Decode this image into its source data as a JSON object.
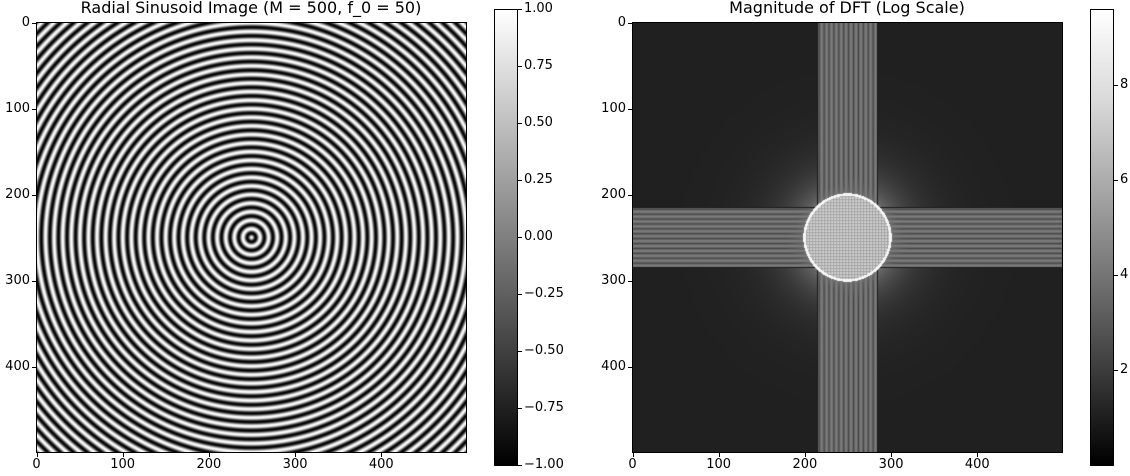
{
  "chart_data": [
    {
      "type": "heatmap",
      "title": "Radial Sinusoid Image (M = 500, f_0 = 50)",
      "image": {
        "size": 500,
        "frequency": 50,
        "pattern": "radial sinusoid (concentric rings centered at 250, 250)",
        "colormap": "gray"
      },
      "x_ticks": [
        "0",
        "100",
        "200",
        "300",
        "400"
      ],
      "x_tick_values": [
        0,
        100,
        200,
        300,
        400
      ],
      "y_ticks": [
        "0",
        "100",
        "200",
        "300",
        "400"
      ],
      "y_tick_values": [
        0,
        100,
        200,
        300,
        400
      ],
      "xlim": [
        0,
        500
      ],
      "ylim": [
        500,
        0
      ],
      "colorbar": {
        "range": [
          -1.0,
          1.0
        ],
        "ticks": [
          "1.00",
          "0.75",
          "0.50",
          "0.25",
          "0.00",
          "−0.25",
          "−0.50",
          "−0.75",
          "−1.00"
        ],
        "tick_values": [
          1.0,
          0.75,
          0.5,
          0.25,
          0.0,
          -0.25,
          -0.5,
          -0.75,
          -1.0
        ]
      }
    },
    {
      "type": "heatmap",
      "title": "Magnitude of DFT (Log Scale)",
      "image": {
        "size": 500,
        "pattern": "bright disc of radius ~50 at center with horizontal and vertical cross bands between 215 and 285",
        "colormap": "gray"
      },
      "x_ticks": [
        "0",
        "100",
        "200",
        "300",
        "400"
      ],
      "x_tick_values": [
        0,
        100,
        200,
        300,
        400
      ],
      "y_ticks": [
        "0",
        "100",
        "200",
        "300",
        "400"
      ],
      "y_tick_values": [
        0,
        100,
        200,
        300,
        400
      ],
      "xlim": [
        0,
        500
      ],
      "ylim": [
        500,
        0
      ],
      "colorbar": {
        "range": [
          0.0,
          9.6
        ],
        "ticks": [
          "8",
          "6",
          "4",
          "2"
        ],
        "tick_values": [
          8,
          6,
          4,
          2
        ]
      }
    }
  ]
}
